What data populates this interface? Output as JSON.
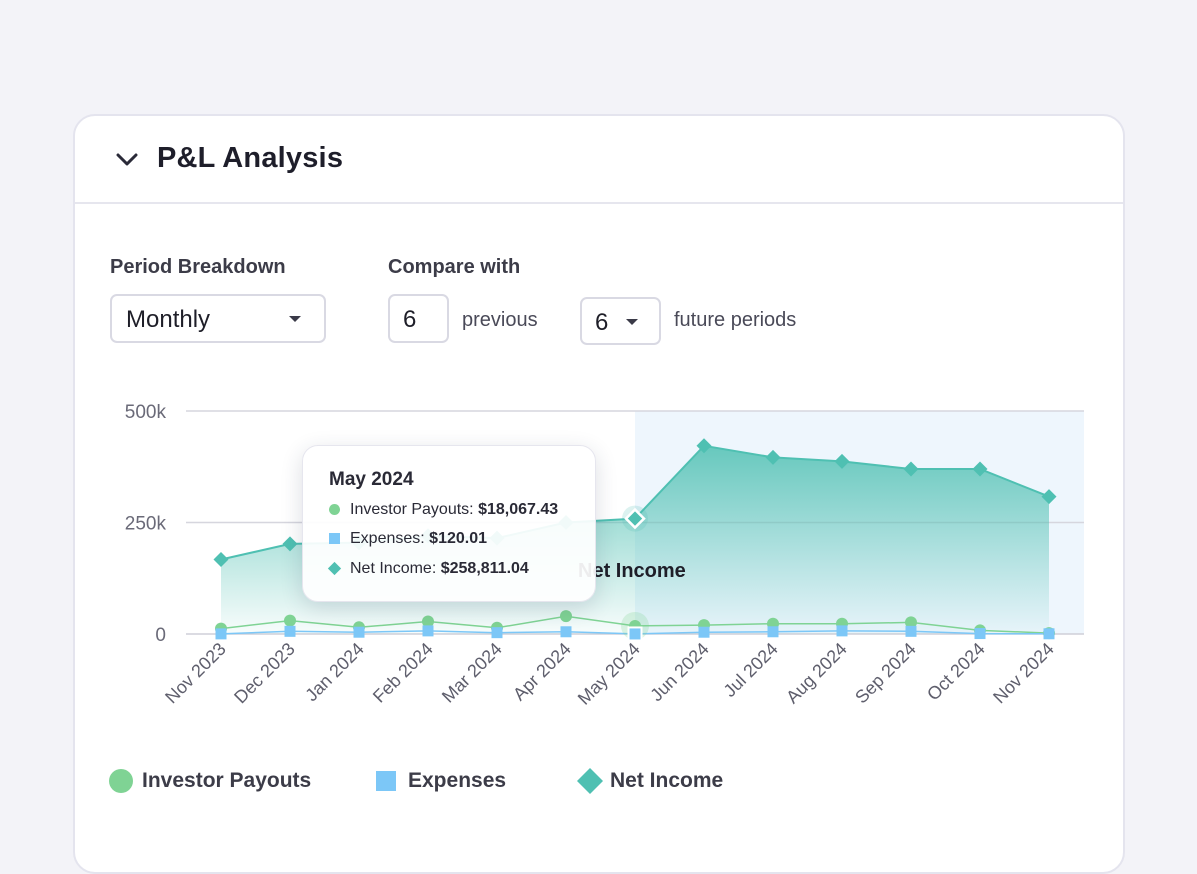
{
  "card": {
    "title": "P&L Analysis",
    "collapse_icon": "chevron-down-icon"
  },
  "controls": {
    "period_label": "Period Breakdown",
    "period_value": "Monthly",
    "compare_label": "Compare with",
    "previous_value": "6",
    "previous_label": "previous",
    "future_value": "6",
    "future_label": "future periods"
  },
  "tooltip": {
    "title": "May 2024",
    "rows": [
      {
        "label": "Investor Payouts:",
        "value": "$18,067.43"
      },
      {
        "label": "Expenses:",
        "value": "$120.01"
      },
      {
        "label": "Net Income:",
        "value": "$258,811.04"
      }
    ]
  },
  "overlay_label": "Net Income",
  "legend": [
    "Investor Payouts",
    "Expenses",
    "Net Income"
  ],
  "colors": {
    "investor_payouts": "#7fd394",
    "expenses": "#7cc7f7",
    "net_income": "#4fc0b2",
    "forecast_band": "#eef6fd"
  },
  "chart_data": {
    "type": "line",
    "categories": [
      "Nov 2023",
      "Dec 2023",
      "Jan 2024",
      "Feb 2024",
      "Mar 2024",
      "Apr 2024",
      "May 2024",
      "Jun 2024",
      "Jul 2024",
      "Aug 2024",
      "Sep 2024",
      "Oct 2024",
      "Nov 2024"
    ],
    "y_ticks": [
      "500k",
      "250k",
      "0"
    ],
    "ylim": [
      0,
      500000
    ],
    "highlighted_index": 6,
    "future_start_index": 6,
    "series": [
      {
        "name": "Investor Payouts",
        "values": [
          12000,
          30000,
          15000,
          28000,
          14000,
          40000,
          18067,
          20000,
          23000,
          23000,
          26000,
          8000,
          2000
        ]
      },
      {
        "name": "Expenses",
        "values": [
          300,
          6000,
          4000,
          7000,
          3000,
          5000,
          120,
          4000,
          5000,
          7000,
          6000,
          1000,
          500
        ]
      },
      {
        "name": "Net Income",
        "values": [
          167000,
          202000,
          205000,
          220000,
          215000,
          250000,
          258811,
          422000,
          396000,
          387000,
          370000,
          370000,
          308000
        ]
      }
    ]
  }
}
